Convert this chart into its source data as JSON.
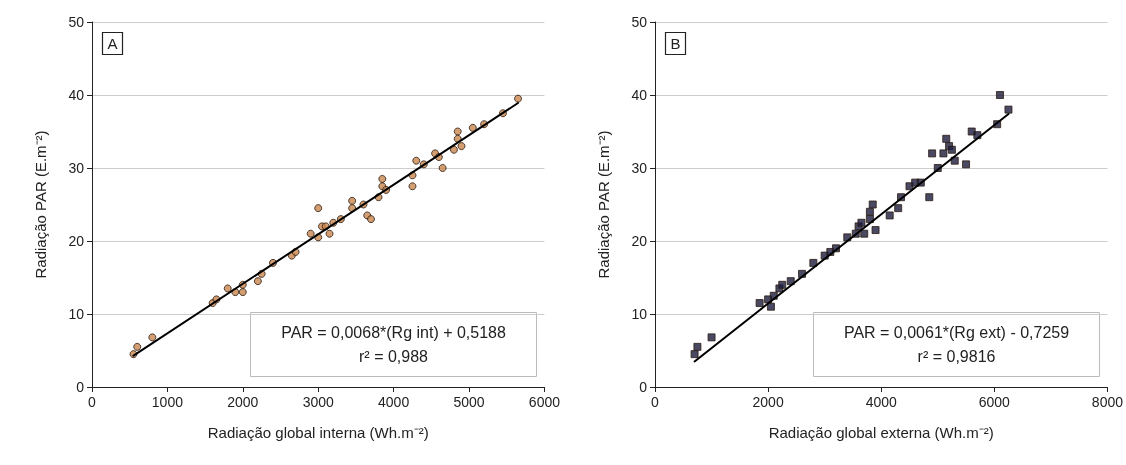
{
  "chart_data": [
    {
      "type": "scatter",
      "xlabel": "Radiação global interna (Wh.m⁻²)",
      "ylabel": "Radiação PAR (E.m⁻²)",
      "xlim": [
        0,
        6000
      ],
      "xticks": [
        0,
        1000,
        2000,
        3000,
        4000,
        5000,
        6000
      ],
      "ylim": [
        0,
        50
      ],
      "yticks": [
        0,
        10,
        20,
        30,
        40,
        50
      ],
      "grid": "y",
      "marker": "circle",
      "annotations": [
        "A",
        "PAR = 0,0068*(Rg int) + 0,5188",
        "r² = 0,988"
      ],
      "series": [
        {
          "color": "#c8864e",
          "x": [
            550,
            600,
            800,
            1600,
            1650,
            1800,
            1900,
            2000,
            2000,
            2200,
            2250,
            2400,
            2650,
            2700,
            2900,
            3000,
            3000,
            3050,
            3100,
            3150,
            3200,
            3300,
            3450,
            3450,
            3600,
            3650,
            3700,
            3800,
            3850,
            3850,
            3900,
            4250,
            4250,
            4300,
            4400,
            4550,
            4600,
            4650,
            4800,
            4850,
            4850,
            4900,
            5050,
            5200,
            5450,
            5650
          ],
          "values": [
            4.5,
            5.5,
            6.8,
            11.5,
            12,
            13.5,
            13,
            13,
            14,
            14.5,
            15.5,
            17,
            18,
            18.5,
            21,
            24.5,
            20.5,
            22,
            22,
            21,
            22.5,
            23,
            24.5,
            25.5,
            25,
            23.5,
            23,
            26,
            28.5,
            27.5,
            27,
            27.5,
            29,
            31,
            30.5,
            32,
            31.5,
            30,
            32.5,
            35,
            34,
            33,
            35.5,
            36,
            37.5,
            39.5
          ]
        },
        {
          "type": "line",
          "color": "#000000",
          "marker": "none",
          "x": [
            550,
            5650
          ],
          "values": [
            4.3,
            38.9
          ]
        }
      ]
    },
    {
      "type": "scatter",
      "xlabel": "Radiação global externa (Wh.m⁻²)",
      "ylabel": "Radiação PAR (E.m⁻²)",
      "xlim": [
        0,
        8000
      ],
      "xticks": [
        0,
        2000,
        4000,
        6000,
        8000
      ],
      "ylim": [
        0,
        50
      ],
      "yticks": [
        0,
        10,
        20,
        30,
        40,
        50
      ],
      "grid": "y",
      "marker": "square",
      "annotations": [
        "B",
        "PAR = 0,0061*(Rg ext) - 0,7259",
        "r² = 0,9816"
      ],
      "series": [
        {
          "color": "#1c1c3c",
          "x": [
            700,
            750,
            1000,
            1850,
            2000,
            2050,
            2100,
            2200,
            2250,
            2400,
            2600,
            2800,
            3000,
            3100,
            3200,
            3400,
            3550,
            3600,
            3650,
            3700,
            3800,
            3800,
            3850,
            3900,
            4150,
            4300,
            4350,
            4500,
            4600,
            4700,
            4850,
            4900,
            5000,
            5100,
            5150,
            5200,
            5250,
            5300,
            5500,
            5600,
            5700,
            6050,
            6100,
            6250
          ],
          "values": [
            4.5,
            5.5,
            6.8,
            11.5,
            12,
            11,
            12.5,
            13.5,
            14,
            14.5,
            15.5,
            17,
            18,
            18.5,
            19,
            20.5,
            21,
            22,
            22.5,
            21,
            23,
            24,
            25,
            21.5,
            23.5,
            24.5,
            26,
            27.5,
            28,
            28,
            26,
            32,
            30,
            32,
            34,
            33,
            32.5,
            31,
            30.5,
            35,
            34.5,
            36,
            40,
            38
          ]
        },
        {
          "type": "line",
          "color": "#000000",
          "marker": "none",
          "x": [
            700,
            6250
          ],
          "values": [
            3.5,
            37.4
          ]
        }
      ]
    }
  ]
}
